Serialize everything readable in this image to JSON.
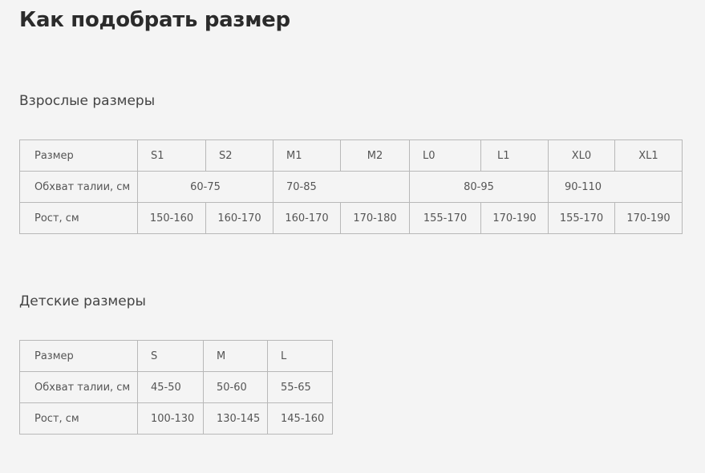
{
  "title": "Как подобрать размер",
  "adult": {
    "heading": "Взрослые размеры",
    "rows": [
      [
        "Размер",
        "S1",
        "S2",
        "M1",
        "M2",
        "L0",
        "L1",
        "XL0",
        "XL1"
      ],
      [
        "Обхват талии, см",
        "60-75",
        "70-85",
        "80-95",
        "90-110"
      ],
      [
        "Рост, см",
        "150-160",
        "160-170",
        "160-170",
        "170-180",
        "155-170",
        "170-190",
        "155-170",
        "170-190"
      ]
    ]
  },
  "kids": {
    "heading": "Детские размеры",
    "rows": [
      [
        "Размер",
        "S",
        "M",
        "L"
      ],
      [
        "Обхват талии, см",
        "45-50",
        "50-60",
        "55-65"
      ],
      [
        "Рост, см",
        "100-130",
        "130-145",
        "145-160"
      ]
    ]
  }
}
